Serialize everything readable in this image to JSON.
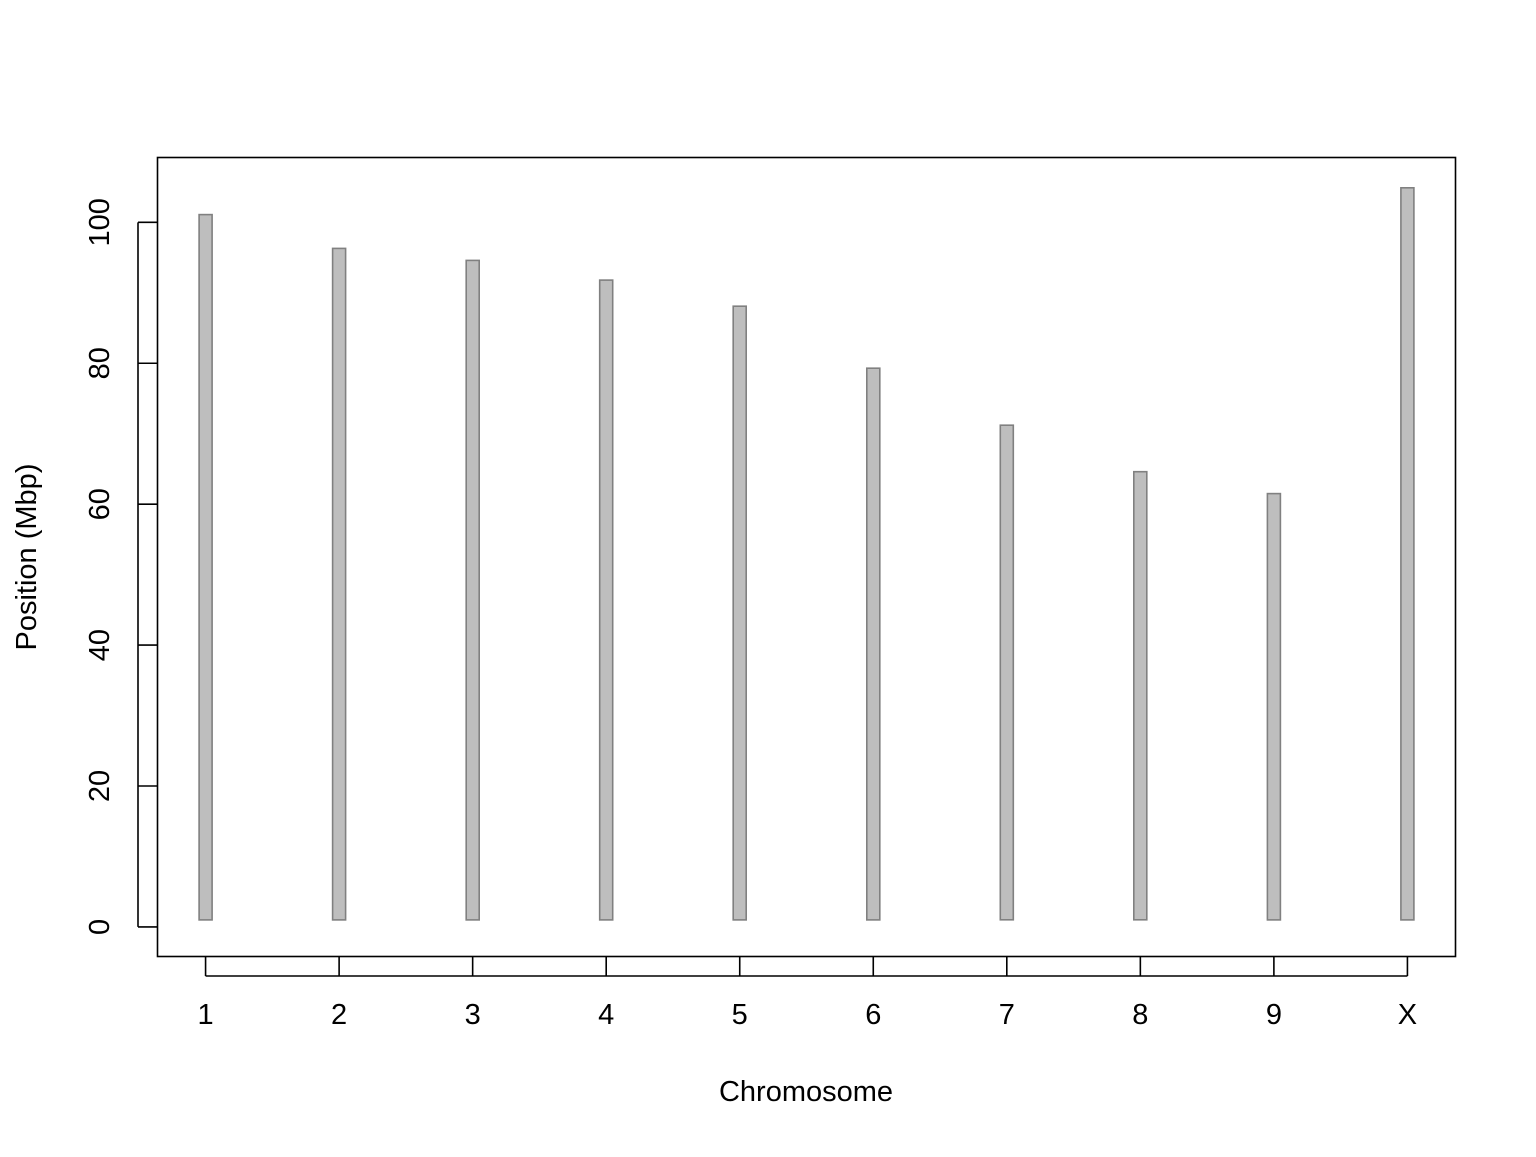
{
  "chart_data": {
    "type": "bar",
    "categories": [
      "1",
      "2",
      "3",
      "4",
      "5",
      "6",
      "7",
      "8",
      "9",
      "X"
    ],
    "series": [
      {
        "start": [
          1,
          1,
          1,
          1,
          1,
          1,
          1,
          1,
          1,
          1
        ],
        "end": [
          101.1,
          96.3,
          94.6,
          91.8,
          88.1,
          79.3,
          71.2,
          64.6,
          61.5,
          104.9
        ]
      }
    ],
    "xlabel": "Chromosome",
    "ylabel": "Position (Mbp)",
    "ylim": [
      -4.2,
      109.2
    ],
    "yticks": [
      0,
      20,
      40,
      60,
      80,
      100
    ],
    "grid": false,
    "bar_fill": "#bebebe",
    "bar_stroke": "#808080"
  }
}
